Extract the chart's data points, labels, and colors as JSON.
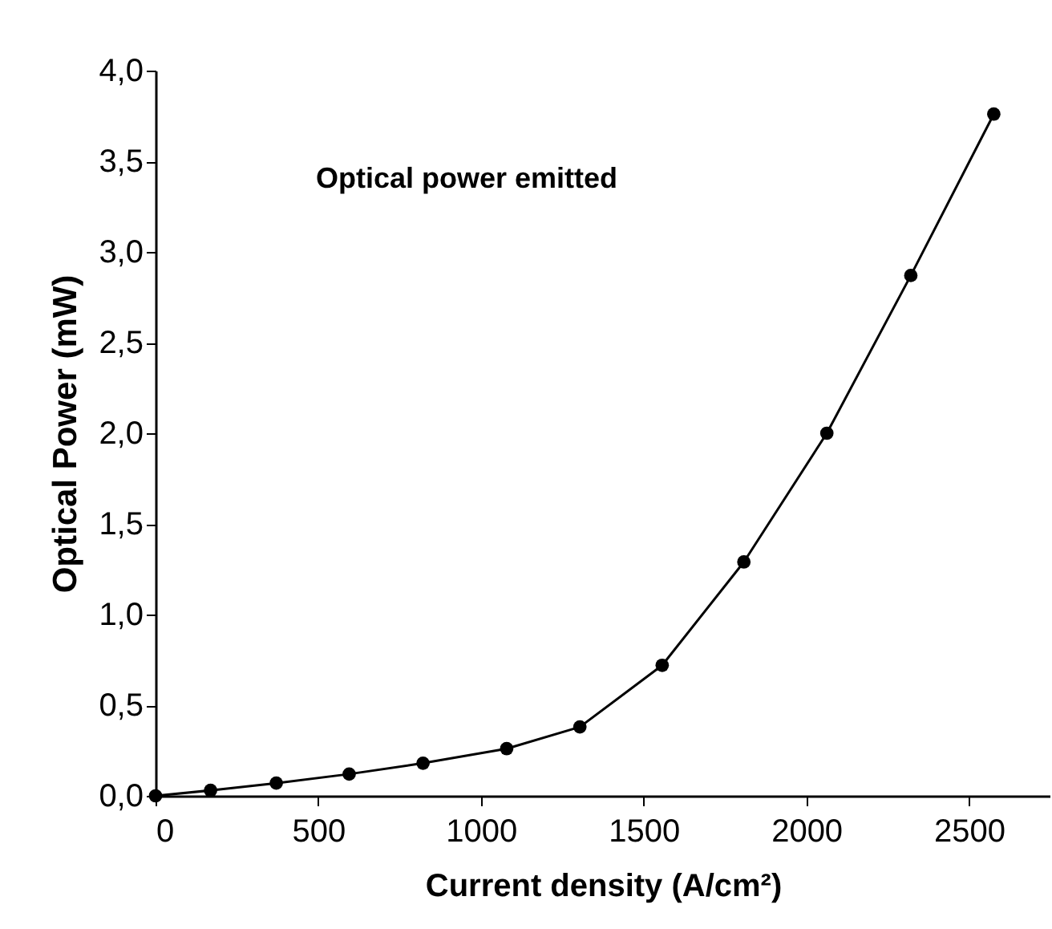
{
  "chart_data": {
    "type": "line",
    "xlabel": "Current density (A/cm²)",
    "ylabel": "Optical Power (mW)",
    "annotations": [
      "Optical power emitted"
    ],
    "x": [
      0,
      169,
      371,
      595,
      822,
      1079,
      1304,
      1557,
      1808,
      2063,
      2321,
      2576
    ],
    "series": [
      {
        "color": "#000000",
        "values": [
          0,
          0.03,
          0.07,
          0.12,
          0.18,
          0.26,
          0.38,
          0.72,
          1.29,
          2.0,
          2.87,
          3.76
        ]
      }
    ],
    "xlim": [
      0,
      2750
    ],
    "xticks": [
      0,
      500,
      1000,
      1500,
      2000,
      2500
    ],
    "ylim": [
      0,
      4
    ],
    "yticks": [
      {
        "value": 0,
        "label": "0,0"
      },
      {
        "value": 0.5,
        "label": "0,5"
      },
      {
        "value": 1,
        "label": "1,0"
      },
      {
        "value": 1.5,
        "label": "1,5"
      },
      {
        "value": 2,
        "label": "2,0"
      },
      {
        "value": 2.5,
        "label": "2,5"
      },
      {
        "value": 3,
        "label": "3,0"
      },
      {
        "value": 3.5,
        "label": "3,5"
      },
      {
        "value": 4,
        "label": "4,0"
      }
    ],
    "grid": false,
    "legend": false,
    "marker": "circle",
    "line_style": "solid"
  }
}
